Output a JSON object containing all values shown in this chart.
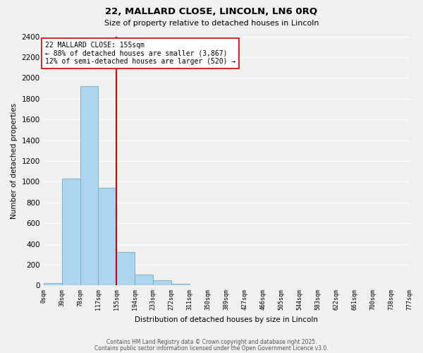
{
  "title": "22, MALLARD CLOSE, LINCOLN, LN6 0RQ",
  "subtitle": "Size of property relative to detached houses in Lincoln",
  "xlabel": "Distribution of detached houses by size in Lincoln",
  "ylabel": "Number of detached properties",
  "bar_color": "#aed4ee",
  "bar_edge_color": "#6aaad4",
  "vline_color": "#cc0000",
  "vline_x": 4,
  "annotation_title": "22 MALLARD CLOSE: 155sqm",
  "annotation_line1": "← 88% of detached houses are smaller (3,867)",
  "annotation_line2": "12% of semi-detached houses are larger (520) →",
  "bins": [
    "0sqm",
    "39sqm",
    "78sqm",
    "117sqm",
    "155sqm",
    "194sqm",
    "233sqm",
    "272sqm",
    "311sqm",
    "350sqm",
    "389sqm",
    "427sqm",
    "466sqm",
    "505sqm",
    "544sqm",
    "583sqm",
    "622sqm",
    "661sqm",
    "700sqm",
    "738sqm",
    "777sqm"
  ],
  "values": [
    20,
    1030,
    1920,
    940,
    320,
    105,
    50,
    15,
    0,
    0,
    0,
    0,
    0,
    0,
    0,
    0,
    0,
    0,
    0,
    0
  ],
  "ylim": [
    0,
    2400
  ],
  "yticks": [
    0,
    200,
    400,
    600,
    800,
    1000,
    1200,
    1400,
    1600,
    1800,
    2000,
    2200,
    2400
  ],
  "figsize": [
    6.0,
    5.0
  ],
  "dpi": 100,
  "bg_color": "#f0f0f0",
  "plot_bg_color": "#f0f0f0",
  "footer1": "Contains HM Land Registry data © Crown copyright and database right 2025.",
  "footer2": "Contains public sector information licensed under the Open Government Licence v3.0."
}
